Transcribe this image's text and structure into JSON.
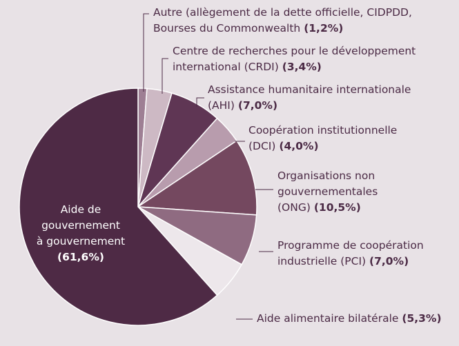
{
  "chart_data": {
    "type": "pie",
    "categories": [
      "Autre (allègement de la dette officielle, CIDPDD,\nBourses du Commonwealth",
      "Centre de recherches pour le développement\ninternational (CRDI)",
      "Assistance humanitaire internationale\n(AHI)",
      "Coopération institutionnelle\n(DCI)",
      "Organisations non\ngouvernementales\n(ONG)",
      "Programme de coopération\nindustrielle (PCI)",
      "Aide alimentaire bilatérale",
      "Aide de\ngouvernement\nà gouvernement"
    ],
    "values": [
      1.2,
      3.4,
      7.0,
      4.0,
      10.5,
      7.0,
      5.3,
      61.6
    ],
    "value_labels": [
      "(1,2%)",
      "(3,4%)",
      "(7,0%)",
      "(4,0%)",
      "(10,5%)",
      "(7,0%)",
      "(5,3%)",
      "(61,6%)"
    ],
    "colors": [
      "#9e7f94",
      "#cdb9c4",
      "#5f3654",
      "#b89cad",
      "#74485f",
      "#8f6b81",
      "#ede7eb",
      "#4e2a45"
    ]
  }
}
